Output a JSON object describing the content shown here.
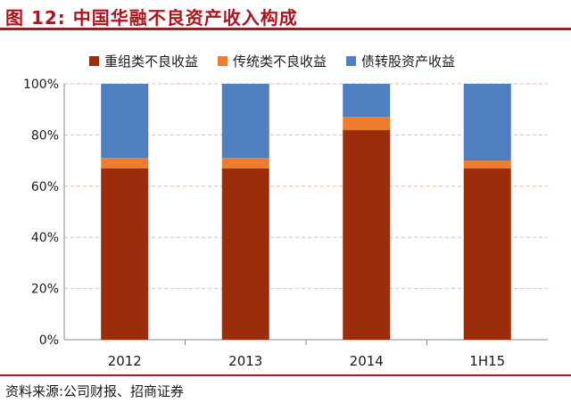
{
  "header": {
    "title": "图 12:  中国华融不良资产收入构成"
  },
  "footer": {
    "source": "资料来源:公司财报、招商证券"
  },
  "chart_data": {
    "type": "bar",
    "stacked": true,
    "categories": [
      "2012",
      "2013",
      "2014",
      "1H15"
    ],
    "series": [
      {
        "name": "重组类不良收益",
        "color": "#9b2d0a",
        "values": [
          67,
          67,
          82,
          67
        ]
      },
      {
        "name": "传统类不良收益",
        "color": "#ef7d2d",
        "values": [
          4,
          4,
          5,
          3
        ]
      },
      {
        "name": "债转股资产收益",
        "color": "#4f7fc0",
        "values": [
          29,
          29,
          13,
          30
        ]
      }
    ],
    "yticks": [
      "0%",
      "20%",
      "40%",
      "60%",
      "80%",
      "100%"
    ],
    "ylim": [
      0,
      100
    ],
    "grid": true,
    "legend": "top"
  }
}
